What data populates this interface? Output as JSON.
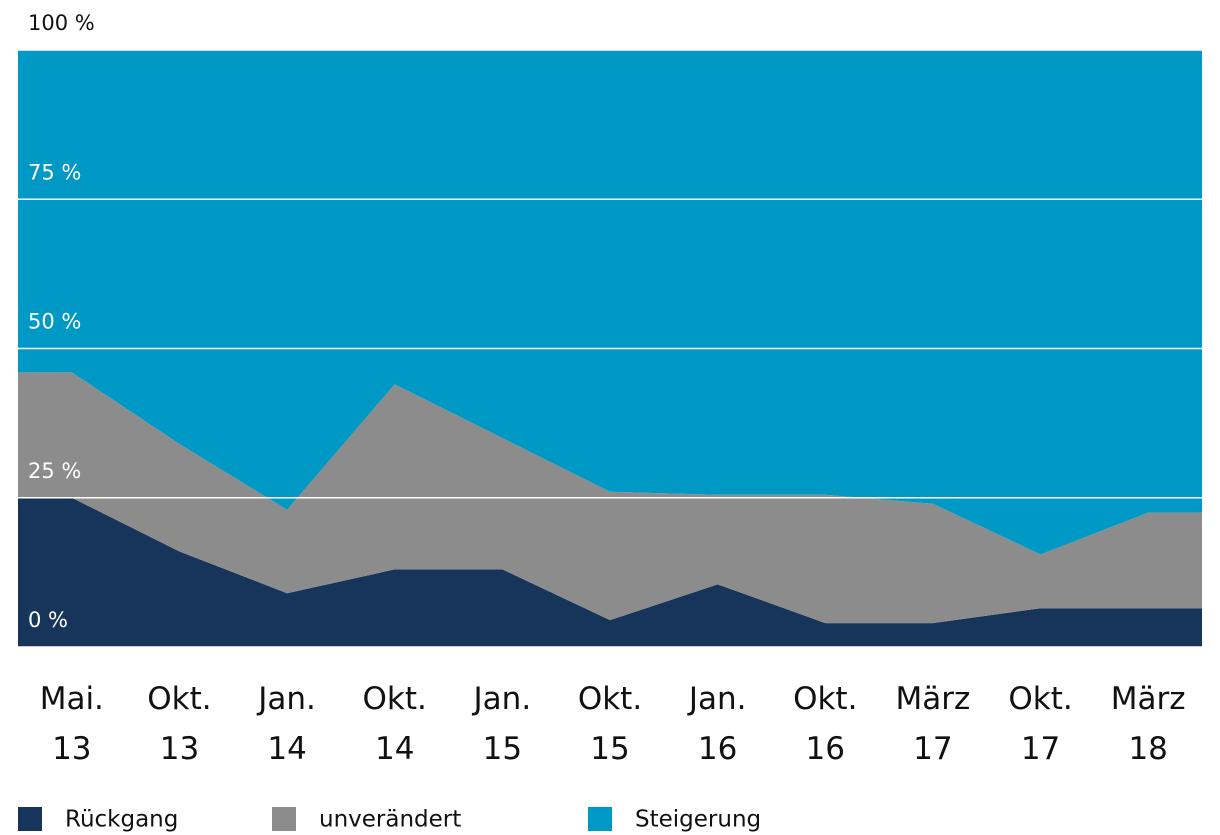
{
  "chart_data": {
    "type": "stacked_area",
    "categories": [
      "Mai. 13",
      "Okt. 13",
      "Jan. 14",
      "Okt. 14",
      "Jan. 15",
      "Okt. 15",
      "Jan. 16",
      "Okt. 16",
      "März 17",
      "Okt. 17",
      "März 18"
    ],
    "series": [
      {
        "name": "Rückgang",
        "color": "#17355a",
        "values": [
          25,
          16,
          9,
          13,
          13,
          4.5,
          10.5,
          4,
          4,
          6.5,
          6.5
        ]
      },
      {
        "name": "unverändert",
        "color": "#8c8c8c",
        "values": [
          21,
          18,
          14,
          31,
          22,
          21.5,
          15,
          21.5,
          20,
          9,
          16
        ]
      },
      {
        "name": "Steigerung",
        "color": "#0099c6",
        "values": [
          54,
          66,
          77,
          56,
          65,
          74,
          74.5,
          74.5,
          76,
          84.5,
          77.5
        ]
      }
    ],
    "ylim": [
      0,
      100
    ],
    "yticks": [
      {
        "value": 0,
        "label": "0 %"
      },
      {
        "value": 25,
        "label": "25 %"
      },
      {
        "value": 50,
        "label": "50 %"
      },
      {
        "value": 75,
        "label": "75 %"
      },
      {
        "value": 100,
        "label": "100 %"
      }
    ],
    "grid": true
  }
}
